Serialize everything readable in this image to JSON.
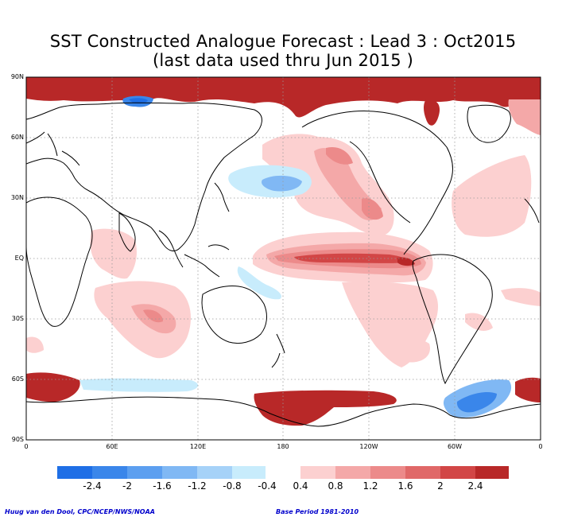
{
  "title_line1": "SST Constructed Analogue Forecast : Lead 3 : Oct2015",
  "title_line2": "(last data used thru Jun 2015 )",
  "lat_labels": [
    "90N",
    "60N",
    "30N",
    "EQ",
    "30S",
    "60S",
    "90S"
  ],
  "lon_labels": [
    "0",
    "60E",
    "120E",
    "180",
    "120W",
    "60W",
    "0"
  ],
  "colorbar": {
    "labels": [
      "-2.4",
      "-2",
      "-1.6",
      "-1.2",
      "-0.8",
      "-0.4",
      "0.4",
      "0.8",
      "1.2",
      "1.6",
      "2",
      "2.4"
    ],
    "negative_colors": [
      "#1f6fe6",
      "#3a86ea",
      "#5c9ff0",
      "#80b8f4",
      "#a6d2f8",
      "#c8ecfc"
    ],
    "positive_colors": [
      "#fcd0d0",
      "#f4a8a8",
      "#ec8a8a",
      "#e06868",
      "#d24646",
      "#b82828"
    ]
  },
  "footer_credit": "Huug van den Dool, CPC/NCEP/NWS/NOAA",
  "footer_base_period": "Base Period 1981-2010"
}
